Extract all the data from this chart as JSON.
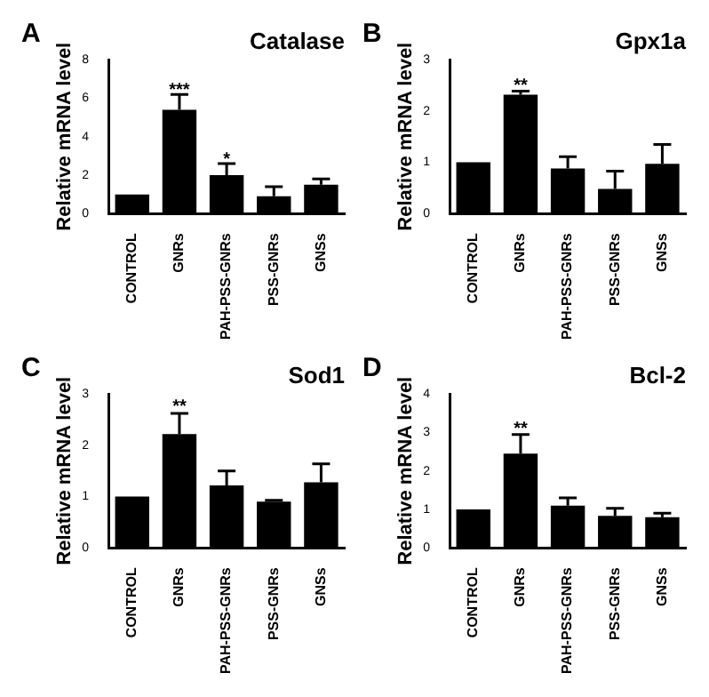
{
  "chart_data": [
    {
      "type": "bar",
      "title": "Catalase",
      "ylabel": "Relative mRNA level",
      "categories": [
        "CONTROL",
        "GNRs",
        "PAH-PSS-GNRs",
        "PSS-GNRs",
        "GNSs"
      ],
      "values": [
        1,
        5.4,
        2.0,
        0.9,
        1.5
      ],
      "errors": [
        null,
        [
          5.4,
          6.2
        ],
        [
          2.0,
          2.6
        ],
        [
          0.9,
          1.4
        ],
        [
          1.5,
          1.8
        ]
      ],
      "color": "#000000",
      "ylim": [
        0,
        8
      ],
      "yticks": [
        0,
        2,
        4,
        6,
        8
      ],
      "grid": false,
      "legend": false,
      "annotations": [
        "A",
        {
          "text": "***",
          "x": "GNRs",
          "y": 6.4
        },
        {
          "text": "*",
          "x": "PAH-PSS-GNRs",
          "y": 2.8
        }
      ]
    },
    {
      "type": "bar",
      "title": "Gpx1a",
      "ylabel": "Relative mRNA level",
      "categories": [
        "CONTROL",
        "GNRs",
        "PAH-PSS-GNRs",
        "PSS-GNRs",
        "GNSs"
      ],
      "values": [
        1,
        2.32,
        0.88,
        0.48,
        0.97
      ],
      "errors": [
        null,
        [
          2.32,
          2.39
        ],
        [
          0.88,
          1.11
        ],
        [
          0.48,
          0.83
        ],
        [
          0.97,
          1.35
        ]
      ],
      "color": "#000000",
      "ylim": [
        0,
        3
      ],
      "yticks": [
        0,
        1,
        2,
        3
      ],
      "grid": false,
      "legend": false,
      "annotations": [
        "B",
        {
          "text": "**",
          "x": "GNRs",
          "y": 2.5
        }
      ]
    },
    {
      "type": "bar",
      "title": "Sod1",
      "ylabel": "Relative mRNA level",
      "categories": [
        "CONTROL",
        "GNRs",
        "PAH-PSS-GNRs",
        "PSS-GNRs",
        "GNSs"
      ],
      "values": [
        1,
        2.22,
        1.22,
        0.9,
        1.28
      ],
      "errors": [
        null,
        [
          2.22,
          2.62
        ],
        [
          1.22,
          1.5
        ],
        [
          0.9,
          0.93
        ],
        [
          1.28,
          1.64
        ]
      ],
      "color": "#000000",
      "ylim": [
        0,
        3
      ],
      "yticks": [
        0,
        1,
        2,
        3
      ],
      "grid": false,
      "legend": false,
      "annotations": [
        "C",
        {
          "text": "**",
          "x": "GNRs",
          "y": 2.75
        }
      ]
    },
    {
      "type": "bar",
      "title": "Bcl-2",
      "ylabel": "Relative mRNA level",
      "categories": [
        "CONTROL",
        "GNRs",
        "PAH-PSS-GNRs",
        "PSS-GNRs",
        "GNSs"
      ],
      "values": [
        1,
        2.45,
        1.1,
        0.83,
        0.8
      ],
      "errors": [
        null,
        [
          2.45,
          2.95
        ],
        [
          1.1,
          1.3
        ],
        [
          0.83,
          1.03
        ],
        [
          0.8,
          0.9
        ]
      ],
      "color": "#000000",
      "ylim": [
        0,
        4
      ],
      "yticks": [
        0,
        1,
        2,
        3,
        4
      ],
      "grid": false,
      "legend": false,
      "annotations": [
        "D",
        {
          "text": "**",
          "x": "GNRs",
          "y": 3.1
        }
      ]
    }
  ]
}
